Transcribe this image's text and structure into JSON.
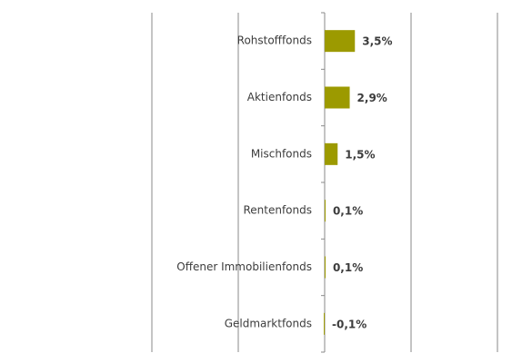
{
  "chart_data": {
    "type": "barh",
    "categories": [
      "Rohstofffonds",
      "Aktienfonds",
      "Mischfonds",
      "Rentenfonds",
      "Offener Immobilienfonds",
      "Geldmarktfonds"
    ],
    "values": [
      3.5,
      2.9,
      1.5,
      0.1,
      0.1,
      -0.1
    ],
    "value_labels": [
      "3,5%",
      "2,9%",
      "1,5%",
      "0,1%",
      "0,1%",
      "-0,1%"
    ],
    "color": "#9c9a00",
    "xlim": [
      -20,
      20
    ],
    "xgrid": [
      -20,
      -10,
      0,
      10,
      20
    ]
  }
}
